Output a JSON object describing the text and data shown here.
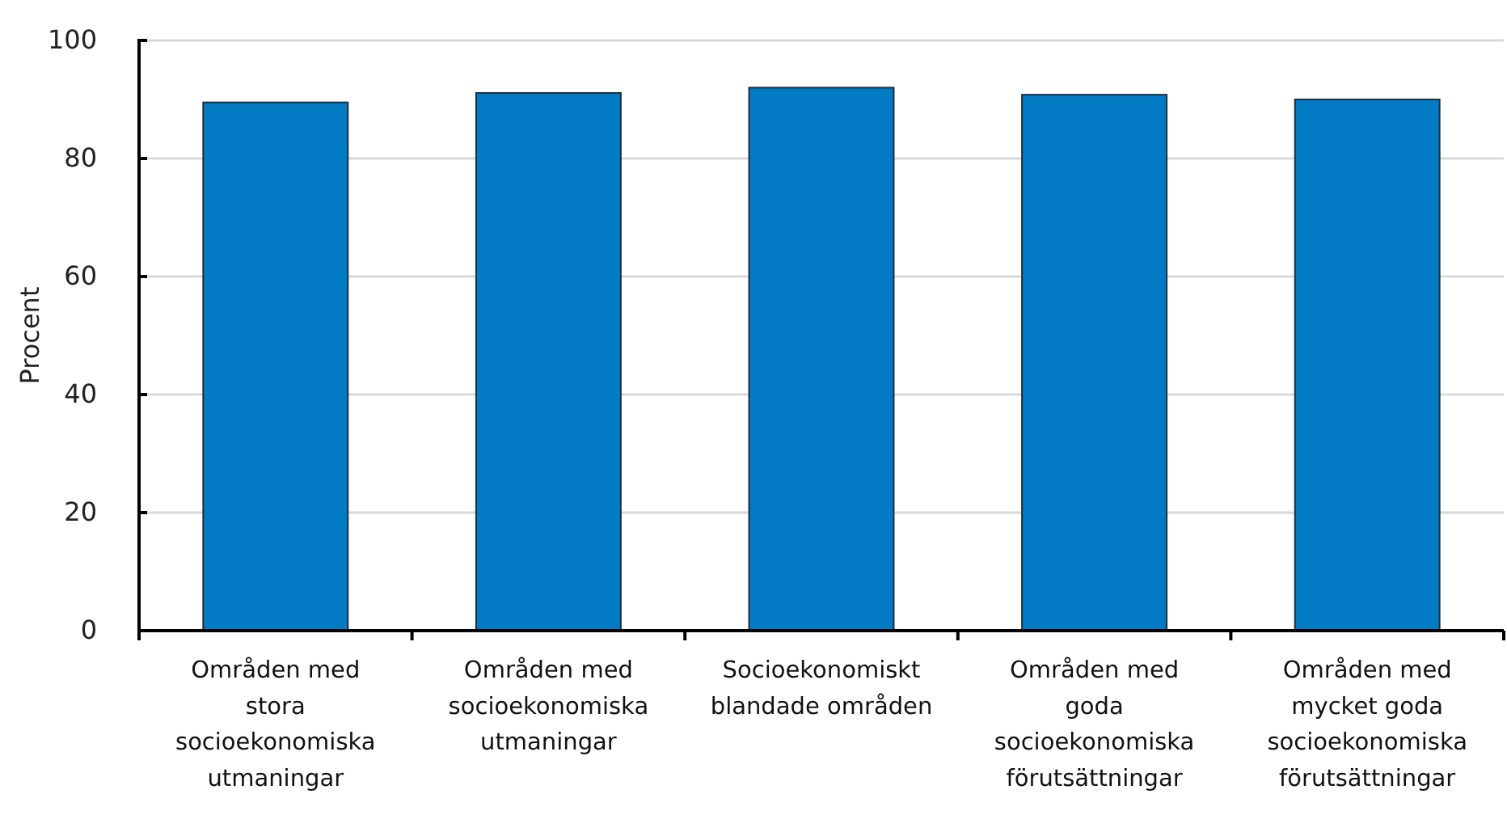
{
  "chart_data": {
    "type": "bar",
    "ylabel": "Procent",
    "categories": [
      "Områden med stora socioekonomiska utmaningar",
      "Områden med socioekonomiska utmaningar",
      "Socioekonomiskt blandade områden",
      "Områden med goda socioekonomiska förutsättningar",
      "Områden med mycket goda socioekonomiska förutsättningar"
    ],
    "values": [
      89.5,
      91.1,
      92.0,
      90.8,
      90.0
    ],
    "color": "#037bc4",
    "ylim": [
      0,
      100
    ],
    "yticks": [
      0,
      20,
      40,
      60,
      80,
      100
    ],
    "grid": "y"
  }
}
